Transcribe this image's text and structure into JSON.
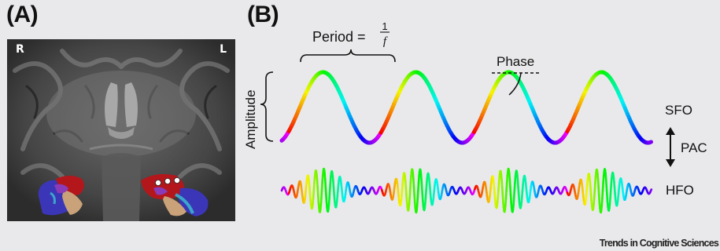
{
  "panel_a": {
    "letter": "(A)",
    "left_side_label": "R",
    "right_side_label": "L"
  },
  "panel_b": {
    "letter": "(B)",
    "period_prefix": "Period = ",
    "period_numerator": "1",
    "period_denominator": "f",
    "phase_label": "Phase",
    "amplitude_label": "Amplitude",
    "sfo_label": "SFO",
    "hfo_label": "HFO",
    "coupling_label": "PAC"
  },
  "footer": "Trends in Cognitive Sciences",
  "colors": {
    "hippocampus_red": "#b3171c",
    "hippocampus_blue": "#3b36b8",
    "hippocampus_tan": "#c9a27a",
    "hippocampus_cyan": "#3aa6c9",
    "hippocampus_violet": "#8a3bb8",
    "electrode_white": "#ffffff"
  }
}
